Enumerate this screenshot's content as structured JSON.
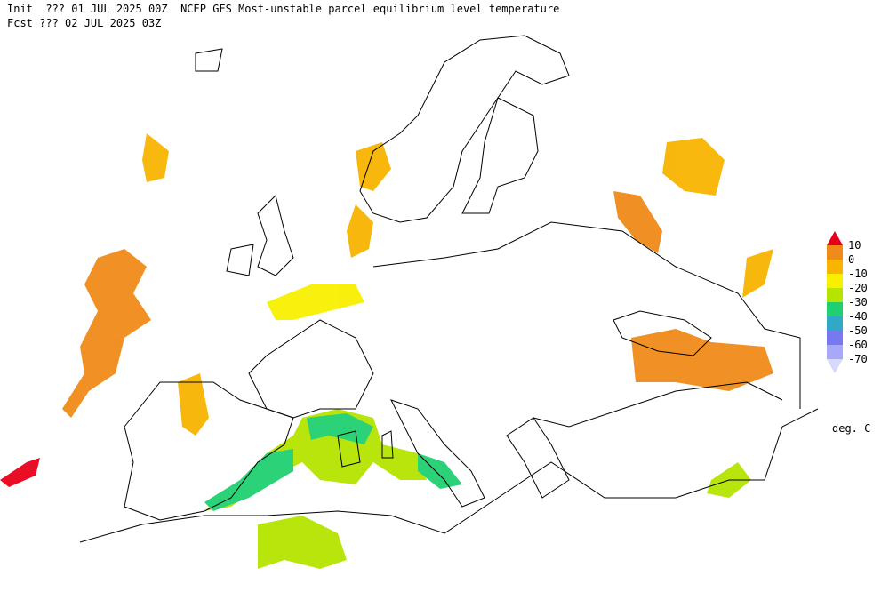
{
  "header": {
    "line1": "Init  ??? 01 JUL 2025 00Z  NCEP GFS Most-unstable parcel equilibrium level temperature",
    "line2": "Fcst ??? 02 JUL 2025 03Z"
  },
  "colorbar": {
    "labels": [
      "10",
      "0",
      "-10",
      "-20",
      "-30",
      "-40",
      "-50",
      "-60",
      "-70"
    ],
    "colors": [
      "#e8001a",
      "#f08a18",
      "#f8b400",
      "#f8f000",
      "#b4e400",
      "#20d070",
      "#30a8c8",
      "#7878f0",
      "#a8a8f8",
      "#d8d8fc"
    ],
    "unit": "deg. C"
  }
}
